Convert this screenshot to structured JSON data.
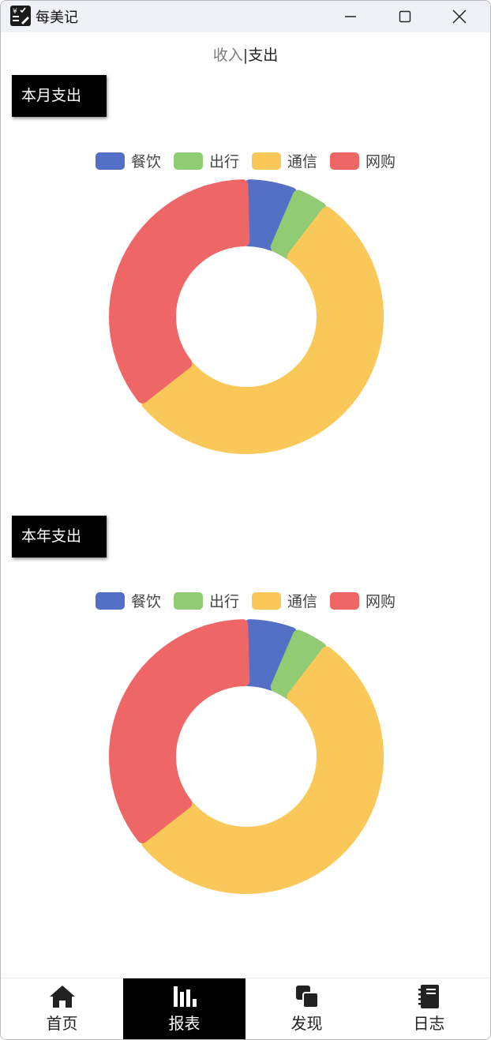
{
  "window": {
    "title": "每美记",
    "icon": "ledger-app-icon",
    "controls": [
      "minimize-icon",
      "maximize-icon",
      "close-icon"
    ]
  },
  "toggle": {
    "income_label": "收入",
    "separator": "|",
    "expense_label": "支出",
    "active": "支出"
  },
  "monthly": {
    "label": "本月支出"
  },
  "yearly": {
    "label": "本年支出"
  },
  "legend": [
    {
      "name": "餐饮",
      "color": "#5470c6"
    },
    {
      "name": "出行",
      "color": "#91cc75"
    },
    {
      "name": "通信",
      "color": "#fac858"
    },
    {
      "name": "网购",
      "color": "#ee6666"
    }
  ],
  "chart_data": [
    {
      "type": "pie",
      "categories": [
        "餐饮",
        "出行",
        "通信",
        "网购"
      ],
      "values": [
        6,
        4,
        54,
        36
      ],
      "colors": [
        "#5470c6",
        "#91cc75",
        "#fac858",
        "#ee6666"
      ],
      "legend": "top-center"
    },
    {
      "type": "pie",
      "categories": [
        "餐饮",
        "出行",
        "通信",
        "网购"
      ],
      "values": [
        6,
        4,
        54,
        36
      ],
      "colors": [
        "#5470c6",
        "#91cc75",
        "#fac858",
        "#ee6666"
      ],
      "legend": "top-center"
    }
  ],
  "nav": {
    "items": [
      {
        "label": "首页",
        "icon": "home-icon"
      },
      {
        "label": "报表",
        "icon": "bar-chart-icon"
      },
      {
        "label": "发现",
        "icon": "discover-icon"
      },
      {
        "label": "日志",
        "icon": "notebook-icon"
      }
    ],
    "active": "报表"
  }
}
